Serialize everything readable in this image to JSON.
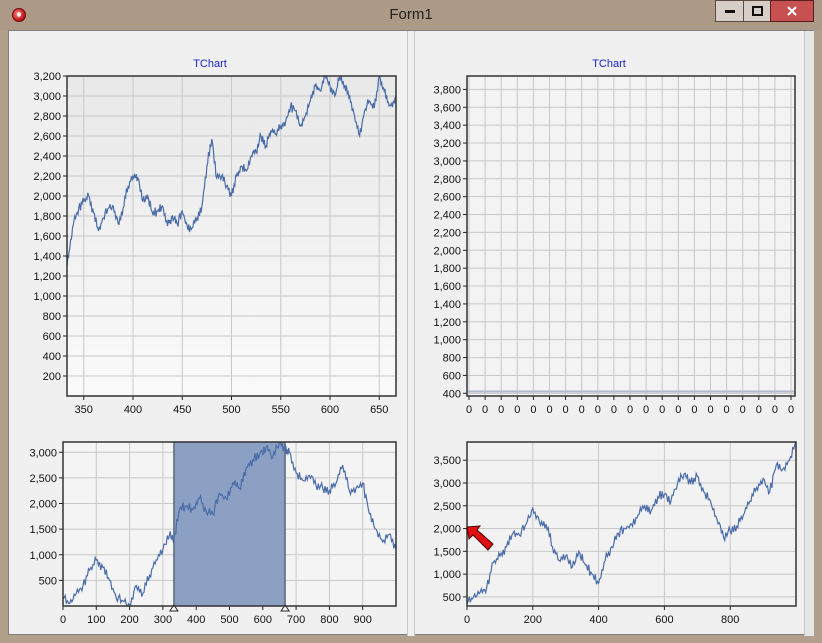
{
  "window": {
    "title": "Form1",
    "min_icon": "minimize-icon",
    "max_icon": "maximize-icon",
    "close_icon": "close-icon"
  },
  "colors": {
    "series": "#4a6ca8",
    "zoom_fill": "#8ca0c4",
    "zoom_border": "#333a46",
    "flat": "#b0bad2",
    "grid": "#c8c8c8",
    "title": "#1b23c7",
    "arrow": "#e01010"
  },
  "charts": {
    "top_left": {
      "title": "TChart"
    },
    "top_right": {
      "title": "TChart"
    }
  },
  "chart_data": [
    {
      "name": "top-left-detail",
      "type": "line",
      "title": "TChart",
      "x_ticks": [
        "350",
        "400",
        "450",
        "500",
        "550",
        "600",
        "650"
      ],
      "y_ticks": [
        "200",
        "400",
        "600",
        "800",
        "1,000",
        "1,200",
        "1,400",
        "1,600",
        "1,800",
        "2,000",
        "2,200",
        "2,400",
        "2,600",
        "2,800",
        "3,000",
        "3,200"
      ],
      "xlim": [
        333,
        667
      ],
      "ylim": [
        0,
        3200
      ],
      "x": [
        333,
        336,
        340,
        345,
        350,
        355,
        360,
        365,
        370,
        375,
        380,
        385,
        390,
        395,
        400,
        405,
        410,
        415,
        420,
        425,
        430,
        435,
        440,
        445,
        450,
        455,
        460,
        465,
        470,
        475,
        480,
        485,
        490,
        495,
        500,
        505,
        510,
        515,
        520,
        525,
        530,
        535,
        540,
        545,
        550,
        555,
        560,
        565,
        570,
        575,
        580,
        585,
        590,
        595,
        600,
        605,
        610,
        615,
        620,
        625,
        630,
        635,
        640,
        645,
        650,
        655,
        660,
        665,
        667
      ],
      "values": [
        1300,
        1500,
        1750,
        1880,
        1950,
        2000,
        1830,
        1650,
        1780,
        1880,
        1900,
        1720,
        1880,
        2100,
        2200,
        2180,
        1950,
        2000,
        1820,
        1850,
        1900,
        1700,
        1800,
        1720,
        1850,
        1700,
        1680,
        1780,
        1900,
        2300,
        2570,
        2180,
        2200,
        2100,
        2000,
        2200,
        2300,
        2250,
        2400,
        2440,
        2600,
        2500,
        2650,
        2620,
        2700,
        2750,
        2900,
        2850,
        2700,
        2800,
        2950,
        3100,
        3050,
        3200,
        3100,
        3000,
        3200,
        3100,
        3000,
        2800,
        2600,
        2850,
        2950,
        2880,
        3200,
        3050,
        2900,
        2950,
        3000
      ],
      "ylabel": "",
      "xlabel": ""
    },
    {
      "name": "top-right-empty",
      "type": "line",
      "title": "TChart",
      "x_ticks": [
        "0",
        "0",
        "0",
        "0",
        "0",
        "0",
        "0",
        "0",
        "0",
        "0",
        "0",
        "0",
        "0",
        "0",
        "0",
        "0",
        "0",
        "0",
        "0",
        "0",
        "0",
        "0",
        "0",
        "0",
        "0",
        "0",
        "0",
        "0",
        "0",
        "0",
        "0",
        "0",
        "0",
        "0",
        "0",
        "0",
        "0",
        "0",
        "0",
        "0",
        "0",
        "0",
        "0",
        "0",
        "0",
        "0",
        "0",
        "0",
        "0",
        "0",
        "0",
        "0",
        "0",
        "0",
        "0",
        "0",
        "0",
        "0",
        "0",
        "0",
        "0",
        "0",
        "0",
        "0",
        "0",
        "0",
        "0",
        "0",
        "0",
        "0",
        "0",
        "0",
        "0",
        "0",
        "0",
        "0",
        "0",
        "0",
        "0",
        "0",
        "0",
        "0",
        "0",
        "0",
        "0",
        "0",
        "0",
        "0",
        "0",
        "0",
        "0",
        "0",
        "0",
        "0",
        "0",
        "0",
        "0",
        "0",
        "0",
        "0",
        "0",
        "0",
        "0",
        "0",
        "0",
        "0",
        "0",
        "0",
        "0",
        "0",
        "0",
        "0",
        "0",
        "0",
        "0",
        "0",
        "0",
        "0",
        "0",
        "0",
        "0",
        "0",
        "0",
        "0",
        "0",
        "0",
        "0",
        "0",
        "0",
        "0"
      ],
      "y_ticks": [
        "400",
        "600",
        "800",
        "1,000",
        "1,200",
        "1,400",
        "1,600",
        "1,800",
        "2,000",
        "2,200",
        "2,400",
        "2,600",
        "2,800",
        "3,000",
        "3,200",
        "3,400",
        "3,600",
        "3,800"
      ],
      "ylim": [
        370,
        3950
      ],
      "values": [
        420,
        420
      ],
      "ylabel": "",
      "xlabel": ""
    },
    {
      "name": "bottom-left-overview",
      "type": "line",
      "x_ticks": [
        "0",
        "100",
        "200",
        "300",
        "400",
        "500",
        "600",
        "700",
        "800",
        "900"
      ],
      "y_ticks": [
        "500",
        "1,000",
        "1,500",
        "2,000",
        "2,500",
        "3,000"
      ],
      "xlim": [
        0,
        1000
      ],
      "ylim": [
        0,
        3200
      ],
      "selection_range": [
        333,
        667
      ],
      "x": [
        0,
        20,
        40,
        60,
        80,
        100,
        120,
        140,
        160,
        180,
        200,
        220,
        240,
        260,
        280,
        300,
        320,
        333,
        350,
        370,
        390,
        410,
        430,
        450,
        470,
        490,
        510,
        530,
        550,
        570,
        590,
        610,
        630,
        650,
        667,
        680,
        700,
        720,
        740,
        760,
        780,
        800,
        820,
        840,
        860,
        880,
        900,
        920,
        940,
        960,
        980,
        1000
      ],
      "values": [
        150,
        50,
        250,
        400,
        700,
        900,
        750,
        500,
        150,
        100,
        20,
        400,
        250,
        600,
        900,
        1100,
        1400,
        1300,
        1900,
        1950,
        1880,
        2100,
        1850,
        1800,
        2200,
        2100,
        2400,
        2300,
        2700,
        2850,
        2950,
        3100,
        2900,
        3200,
        3050,
        3000,
        2600,
        2450,
        2550,
        2350,
        2300,
        2250,
        2400,
        2750,
        2250,
        2300,
        2400,
        1800,
        1500,
        1250,
        1400,
        1100
      ],
      "ylabel": "",
      "xlabel": ""
    },
    {
      "name": "bottom-right",
      "type": "line",
      "x_ticks": [
        "0",
        "200",
        "400",
        "600",
        "800"
      ],
      "y_ticks": [
        "500",
        "1,000",
        "1,500",
        "2,000",
        "2,500",
        "3,000",
        "3,500"
      ],
      "xlim": [
        0,
        1000
      ],
      "ylim": [
        300,
        3900
      ],
      "x": [
        0,
        20,
        40,
        60,
        80,
        100,
        120,
        140,
        160,
        180,
        200,
        220,
        240,
        260,
        280,
        300,
        320,
        340,
        360,
        380,
        400,
        420,
        440,
        460,
        480,
        500,
        520,
        540,
        560,
        580,
        600,
        620,
        640,
        660,
        680,
        700,
        720,
        740,
        760,
        780,
        800,
        820,
        840,
        860,
        880,
        900,
        920,
        940,
        960,
        980,
        1000
      ],
      "values": [
        350,
        500,
        600,
        700,
        1250,
        1400,
        1600,
        1900,
        1850,
        2100,
        2450,
        2150,
        2100,
        1600,
        1300,
        1400,
        1150,
        1500,
        1200,
        1000,
        800,
        1300,
        1600,
        1900,
        2000,
        2100,
        2300,
        2500,
        2400,
        2700,
        2750,
        2600,
        3000,
        3200,
        3000,
        3150,
        2800,
        2600,
        2200,
        1800,
        1950,
        2050,
        2300,
        2600,
        2900,
        3100,
        2800,
        3400,
        3300,
        3500,
        3900
      ],
      "ylabel": "",
      "xlabel": ""
    }
  ]
}
